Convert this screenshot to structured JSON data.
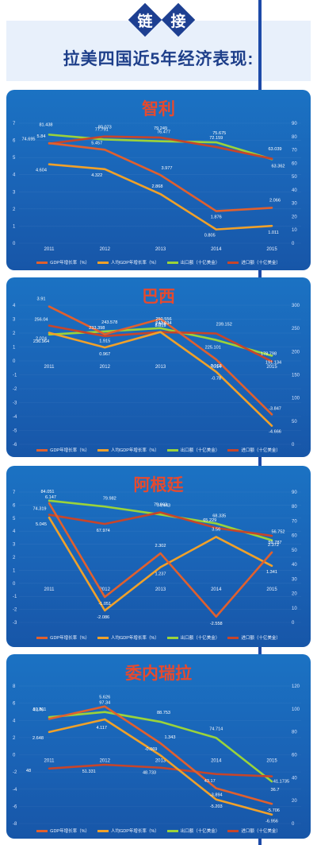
{
  "header": {
    "badge_chars": [
      "链",
      "接"
    ],
    "title": "拉美四国近5年经济表现:"
  },
  "legend_labels": [
    "GDP年增长率（%）",
    "人均GDP年增长率（%）",
    "出口额（十亿美金）",
    "进口额（十亿美金）"
  ],
  "colors": {
    "gdp": "#e0602e",
    "gdppc": "#f0a12a",
    "exports": "#9bd33a",
    "imports": "#c7452a"
  },
  "chart_data": [
    {
      "type": "line",
      "title": "智利",
      "categories": [
        "2011",
        "2012",
        "2013",
        "2014",
        "2015"
      ],
      "left_axis": {
        "ylim": [
          0,
          7
        ],
        "ticks": [
          "0",
          "1",
          "2",
          "3",
          "4",
          "5",
          "6",
          "7"
        ]
      },
      "right_axis": {
        "ylim": [
          0,
          90
        ],
        "ticks": [
          "0",
          "10",
          "20",
          "30",
          "40",
          "50",
          "60",
          "70",
          "80",
          "90"
        ]
      },
      "series": [
        {
          "name": "GDP年增长率（%）",
          "axis": "left",
          "color_key": "gdp",
          "values": [
            5.84,
            5.457,
            3.977,
            1.876,
            2.066
          ],
          "labels": [
            "5.84",
            "5.457",
            "3.977",
            "1.876",
            "2.066"
          ]
        },
        {
          "name": "人均GDP年增长率（%）",
          "axis": "left",
          "color_key": "gdppc",
          "values": [
            4.604,
            4.322,
            2.868,
            0.805,
            1.011
          ],
          "labels": [
            "4.604",
            "4.322",
            "2.868",
            "0.805",
            "1.011"
          ]
        },
        {
          "name": "出口额（十亿美金）",
          "axis": "right",
          "color_key": "exports",
          "values": [
            81.438,
            77.791,
            76.477,
            75.675,
            63.039
          ],
          "labels": [
            "81.438",
            "77.791",
            "76.477",
            "75.675",
            "63.039"
          ]
        },
        {
          "name": "进口额（十亿美金）",
          "axis": "right",
          "color_key": "imports",
          "values": [
            74.695,
            80.073,
            79.249,
            72.159,
            63.362
          ],
          "labels": [
            "74.695",
            "80.073",
            "79.249",
            "72.159",
            "63.362"
          ]
        }
      ]
    },
    {
      "type": "line",
      "title": "巴西",
      "categories": [
        "2011",
        "2012",
        "2013",
        "2014",
        "2015"
      ],
      "left_axis": {
        "ylim": [
          -6,
          4
        ],
        "ticks": [
          "-6",
          "-5",
          "-4",
          "-3",
          "-2",
          "-1",
          "0",
          "1",
          "2",
          "3",
          "4"
        ]
      },
      "right_axis": {
        "ylim": [
          0,
          300
        ],
        "ticks": [
          "0",
          "50",
          "100",
          "150",
          "200",
          "250",
          "300"
        ]
      },
      "series": [
        {
          "name": "GDP年增长率（%）",
          "axis": "left",
          "color_key": "gdp",
          "values": [
            3.91,
            1.915,
            3.015,
            0.103,
            -3.847
          ],
          "labels": [
            "3.91",
            "1.915",
            "3.015",
            "0.103",
            "-3.847"
          ]
        },
        {
          "name": "人均GDP年增长率（%）",
          "axis": "left",
          "color_key": "gdppc",
          "values": [
            2.024,
            0.967,
            2.078,
            -0.78,
            -4.666
          ],
          "labels": [
            "2.024",
            "0.967",
            "2.078",
            "-0.78",
            "-4.666"
          ]
        },
        {
          "name": "出口额（十亿美金）",
          "axis": "right",
          "color_key": "exports",
          "values": [
            236.964,
            243.578,
            250.556,
            225.101,
            191.134
          ],
          "labels": [
            "236.964",
            "243.578",
            "250.556",
            "225.101",
            "191.134"
          ]
        },
        {
          "name": "进口额（十亿美金）",
          "axis": "right",
          "color_key": "imports",
          "values": [
            256.04,
            233.398,
            242.034,
            239.152,
            178.798
          ],
          "labels": [
            "256.04",
            "233.398",
            "242.034",
            "239.152",
            "178.798"
          ]
        }
      ]
    },
    {
      "type": "line",
      "title": "阿根廷",
      "categories": [
        "2011",
        "2012",
        "2013",
        "2014",
        "2015"
      ],
      "left_axis": {
        "ylim": [
          -3,
          7
        ],
        "ticks": [
          "-3",
          "-2",
          "-1",
          "0",
          "1",
          "2",
          "3",
          "4",
          "5",
          "6",
          "7"
        ]
      },
      "right_axis": {
        "ylim": [
          0,
          90
        ],
        "ticks": [
          "0",
          "10",
          "20",
          "30",
          "40",
          "50",
          "60",
          "70",
          "80",
          "90"
        ]
      },
      "series": [
        {
          "name": "GDP年增长率（%）",
          "axis": "left",
          "color_key": "gdp",
          "values": [
            6.147,
            -1.051,
            2.302,
            -2.558,
            2.372
          ],
          "labels": [
            "6.147",
            "-1.051",
            "2.302",
            "-2.558",
            "2.372"
          ]
        },
        {
          "name": "人均GDP年增长率（%）",
          "axis": "left",
          "color_key": "gdppc",
          "values": [
            5.045,
            -2.086,
            1.237,
            3.56,
            1.341
          ],
          "labels": [
            "5.045",
            "-2.086",
            "1.237",
            "3.56",
            "1.341"
          ]
        },
        {
          "name": "出口额（十亿美金）",
          "axis": "right",
          "color_key": "exports",
          "values": [
            84.051,
            79.982,
            74.443,
            68.335,
            56.752
          ],
          "labels": [
            "84.051",
            "79.982",
            "74.443",
            "68.335",
            "56.752"
          ]
        },
        {
          "name": "进口额（十亿美金）",
          "axis": "right",
          "color_key": "imports",
          "values": [
            74.319,
            67.974,
            75.963,
            65.229,
            59.787
          ],
          "labels": [
            "74.319",
            "67.974",
            "75.963",
            "65.229",
            "59.787"
          ]
        }
      ]
    },
    {
      "type": "line",
      "title": "委内瑞拉",
      "categories": [
        "2011",
        "2012",
        "2013",
        "2014",
        "2015"
      ],
      "left_axis": {
        "ylim": [
          -8,
          8
        ],
        "ticks": [
          "-8",
          "-6",
          "-4",
          "-2",
          "0",
          "2",
          "4",
          "6",
          "8"
        ]
      },
      "right_axis": {
        "ylim": [
          0,
          120
        ],
        "ticks": [
          "0",
          "20",
          "40",
          "60",
          "80",
          "100",
          "120"
        ]
      },
      "series": [
        {
          "name": "GDP年增长率（%）",
          "axis": "left",
          "color_key": "gdp",
          "values": [
            4.176,
            5.626,
            1.343,
            -3.894,
            -5.706
          ],
          "labels": [
            "4.176",
            "5.626",
            "1.343",
            "-3.894",
            "-5.706"
          ]
        },
        {
          "name": "人均GDP年增长率（%）",
          "axis": "left",
          "color_key": "gdppc",
          "values": [
            2.648,
            4.117,
            -0.069,
            -5.203,
            -6.956
          ],
          "labels": [
            "2.648",
            "4.117",
            "-0.069",
            "-5.203",
            "-6.956"
          ]
        },
        {
          "name": "出口额（十亿美金）",
          "axis": "right",
          "color_key": "exports",
          "values": [
            92.811,
            97.34,
            88.753,
            74.714,
            36.7
          ],
          "labels": [
            "92.811",
            "97.34",
            "88.753",
            "74.714",
            "36.7"
          ]
        },
        {
          "name": "进口额（十亿美金）",
          "axis": "right",
          "color_key": "imports",
          "values": [
            48,
            51.331,
            48.733,
            43.17,
            41.1735
          ],
          "labels": [
            "48",
            "51.331",
            "48.733",
            "43.17",
            "41.1735"
          ]
        }
      ]
    }
  ]
}
